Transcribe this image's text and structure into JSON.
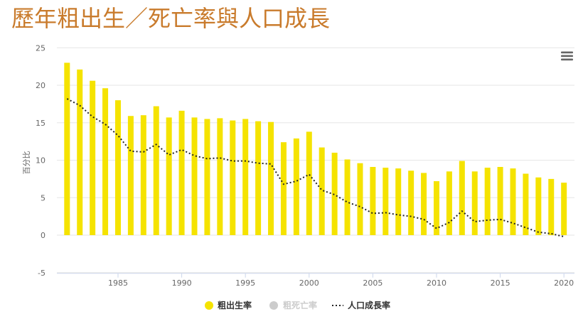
{
  "menu_icon": "hamburger-menu-icon",
  "colors": {
    "title": "#c97b2c",
    "gridline": "#e6e6e6",
    "axis_line": "#ccd6eb",
    "hidden_series": "#cccccc"
  },
  "chart_data": {
    "type": "bar",
    "title": "歷年粗出生／死亡率與人口成長",
    "xlabel": "",
    "ylabel": "百分比",
    "ylim": [
      -5,
      25
    ],
    "yticks": [
      -5,
      0,
      5,
      10,
      15,
      20,
      25
    ],
    "xticks": [
      1985,
      1990,
      1995,
      2000,
      2005,
      2010,
      2015,
      2020
    ],
    "grid": true,
    "legend": "bottom-center",
    "x": [
      1981,
      1982,
      1983,
      1984,
      1985,
      1986,
      1987,
      1988,
      1989,
      1990,
      1991,
      1992,
      1993,
      1994,
      1995,
      1996,
      1997,
      1998,
      1999,
      2000,
      2001,
      2002,
      2003,
      2004,
      2005,
      2006,
      2007,
      2008,
      2009,
      2010,
      2011,
      2012,
      2013,
      2014,
      2015,
      2016,
      2017,
      2018,
      2019,
      2020
    ],
    "series": [
      {
        "name": "粗出生率",
        "type": "bar",
        "color": "#f5e300",
        "visible": true,
        "values": [
          23.0,
          22.1,
          20.6,
          19.6,
          18.0,
          15.9,
          16.0,
          17.2,
          15.7,
          16.6,
          15.7,
          15.5,
          15.6,
          15.3,
          15.5,
          15.2,
          15.1,
          12.4,
          12.9,
          13.8,
          11.7,
          11.0,
          10.1,
          9.6,
          9.1,
          9.0,
          8.9,
          8.6,
          8.3,
          7.2,
          8.5,
          9.9,
          8.5,
          9.0,
          9.1,
          8.9,
          8.2,
          7.7,
          7.5,
          7.0
        ]
      },
      {
        "name": "粗死亡率",
        "type": "bar",
        "color": "#cccccc",
        "visible": false
      },
      {
        "name": "人口成長率",
        "type": "line",
        "style": "dotted",
        "color": "#222222",
        "visible": true,
        "values": [
          18.2,
          17.3,
          15.8,
          14.8,
          13.3,
          11.2,
          11.1,
          12.1,
          10.7,
          11.4,
          10.6,
          10.2,
          10.3,
          9.9,
          9.9,
          9.6,
          9.5,
          6.8,
          7.2,
          8.1,
          6.0,
          5.4,
          4.4,
          3.8,
          2.9,
          3.0,
          2.7,
          2.5,
          2.1,
          0.9,
          1.7,
          3.2,
          1.8,
          2.0,
          2.1,
          1.6,
          1.0,
          0.4,
          0.2,
          -0.2
        ]
      }
    ]
  }
}
